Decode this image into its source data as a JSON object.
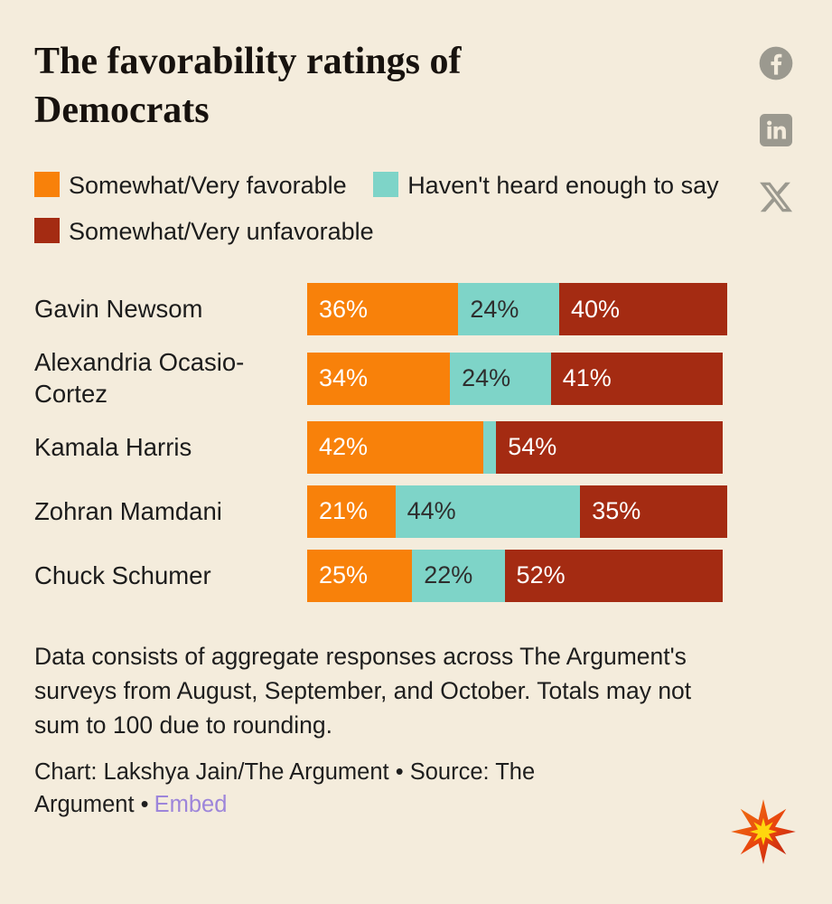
{
  "title": "The favorability ratings of Democrats",
  "colors": {
    "background": "#f4ecdc",
    "favorable": "#f8810a",
    "havent_heard": "#7ed4c8",
    "unfavorable": "#a42b12",
    "embed_link": "#9d85da",
    "social_icon_gray": "#9b998f"
  },
  "icons": {
    "social": [
      "facebook-icon",
      "linkedin-icon",
      "x-icon"
    ],
    "logo": "starburst-logo"
  },
  "chart_data": {
    "type": "bar",
    "orientation": "horizontal",
    "stacked": true,
    "xlim": [
      0,
      100
    ],
    "unit": "%",
    "label_min_value_for_display": 8,
    "legend_position": "top",
    "categories": [
      "Gavin Newsom",
      "Alexandria Ocasio-Cortez",
      "Kamala Harris",
      "Zohran Mamdani",
      "Chuck Schumer"
    ],
    "series": [
      {
        "name": "Somewhat/Very favorable",
        "color": "#f8810a",
        "label_color": "#ffffff",
        "values": [
          36,
          34,
          42,
          21,
          25
        ]
      },
      {
        "name": "Haven't heard enough to say",
        "color": "#7ed4c8",
        "label_color": "#2e2e2e",
        "values": [
          24,
          24,
          3,
          44,
          22
        ]
      },
      {
        "name": "Somewhat/Very unfavorable",
        "color": "#a42b12",
        "label_color": "#ffffff",
        "values": [
          40,
          41,
          54,
          35,
          52
        ]
      }
    ]
  },
  "notes": "Data consists of aggregate responses across The Argument's surveys from August, September, and October. Totals may not sum to 100 due to rounding.",
  "credit": {
    "text": "Chart: Lakshya Jain/The Argument • Source: The Argument •",
    "embed_label": "Embed"
  }
}
